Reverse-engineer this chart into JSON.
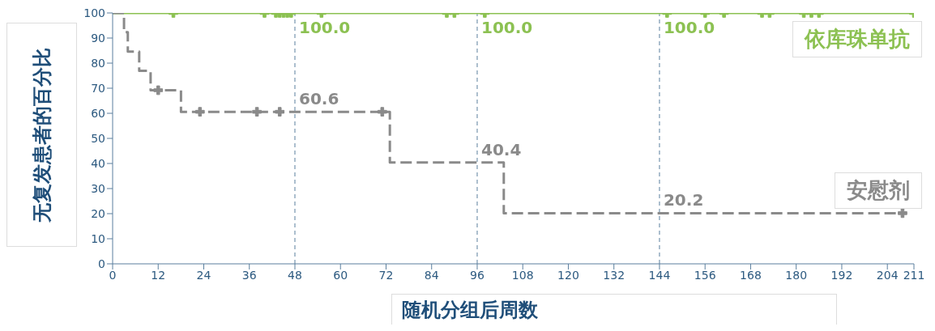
{
  "chart_data": {
    "type": "step",
    "xlabel": "随机分组后周数",
    "ylabel": "无复发患者的百分比",
    "xlim": [
      0,
      211
    ],
    "xticks": [
      0,
      12,
      24,
      36,
      48,
      60,
      72,
      84,
      96,
      108,
      120,
      132,
      144,
      156,
      168,
      180,
      192,
      204,
      211
    ],
    "ylim": [
      0,
      100
    ],
    "yticks": [
      0,
      10,
      20,
      30,
      40,
      50,
      60,
      70,
      80,
      90,
      100
    ],
    "grid": false,
    "legend": false,
    "series": [
      {
        "name": "依库珠单抗",
        "color": "#8cc152",
        "line_style": "solid",
        "x": [
          0,
          211
        ],
        "values": [
          100,
          100
        ]
      },
      {
        "name": "安慰剂",
        "color": "#8a8a8a",
        "line_style": "dashed",
        "x": [
          0,
          3,
          4,
          7,
          10,
          18,
          73,
          103,
          208
        ],
        "values": [
          100,
          92.3,
          84.6,
          76.9,
          69.2,
          60.6,
          40.4,
          20.2,
          20.2
        ]
      },
      {
        "type": "scatter",
        "color": "#8cc152",
        "marker": "cross",
        "x": [
          16,
          40,
          43,
          44,
          45,
          46,
          47,
          55,
          88,
          90,
          98,
          146,
          156,
          161,
          171,
          173,
          182,
          184,
          186,
          211
        ],
        "values": [
          100,
          100,
          100,
          100,
          100,
          100,
          100,
          100,
          100,
          100,
          100,
          100,
          100,
          100,
          100,
          100,
          100,
          100,
          100,
          100
        ]
      },
      {
        "type": "scatter",
        "color": "#8a8a8a",
        "marker": "cross",
        "x": [
          12,
          23,
          38,
          44,
          71,
          208
        ],
        "values": [
          69.2,
          60.6,
          60.6,
          60.6,
          60.6,
          20.2
        ]
      }
    ],
    "ref_lines": [
      {
        "axis": "x",
        "value": 48,
        "color": "#5b7f9e",
        "line_style": "dashed"
      },
      {
        "axis": "x",
        "value": 96,
        "color": "#5b7f9e",
        "line_style": "dashed"
      },
      {
        "axis": "x",
        "value": 144,
        "color": "#5b7f9e",
        "line_style": "dashed"
      }
    ],
    "annotations": [
      {
        "text": "100.0",
        "x": 48,
        "y": 100
      },
      {
        "text": "60.6",
        "x": 48,
        "y": 60.6
      },
      {
        "text": "100.0",
        "x": 96,
        "y": 100
      },
      {
        "text": "40.4",
        "x": 96,
        "y": 40.4
      },
      {
        "text": "100.0",
        "x": 144,
        "y": 100
      },
      {
        "text": "20.2",
        "x": 144,
        "y": 20.2
      }
    ]
  }
}
